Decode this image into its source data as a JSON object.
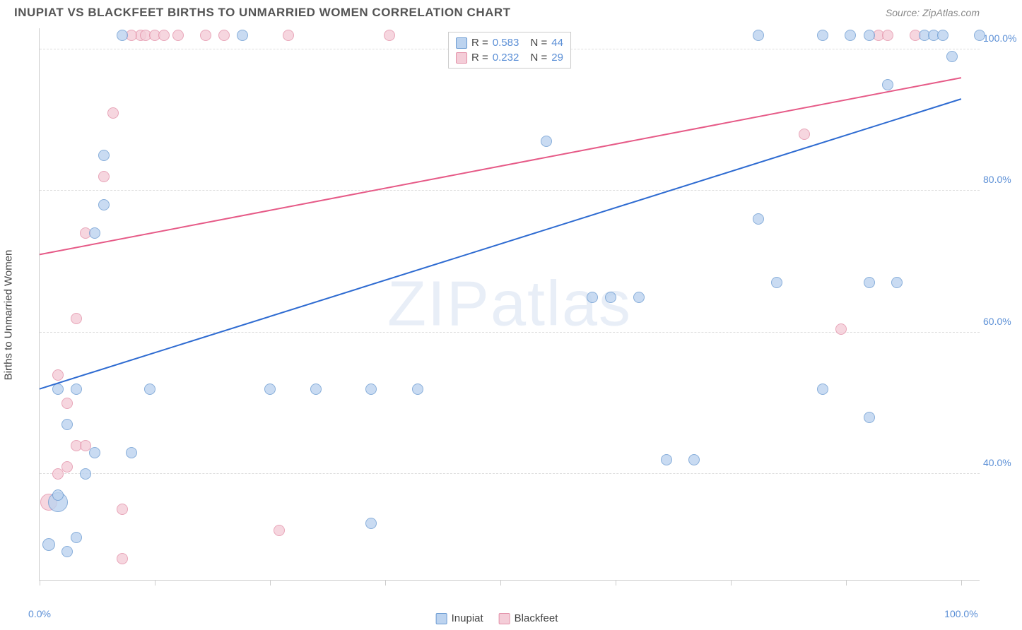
{
  "header": {
    "title": "INUPIAT VS BLACKFEET BIRTHS TO UNMARRIED WOMEN CORRELATION CHART",
    "source_prefix": "Source: ",
    "source": "ZipAtlas.com"
  },
  "yaxis": {
    "label": "Births to Unmarried Women",
    "min": 25,
    "max": 103,
    "ticks": [
      40,
      60,
      80,
      100
    ],
    "tick_labels": [
      "40.0%",
      "60.0%",
      "80.0%",
      "100.0%"
    ],
    "tick_color": "#5b8fd6"
  },
  "xaxis": {
    "min": 0,
    "max": 102,
    "ticks": [
      0,
      12.5,
      25,
      37.5,
      50,
      62.5,
      75,
      87.5,
      100
    ],
    "end_labels": {
      "left": "0.0%",
      "right": "100.0%"
    },
    "label_color": "#5b8fd6"
  },
  "grid_color": "#dddddd",
  "series": {
    "inupiat": {
      "label": "Inupiat",
      "color_fill": "#bcd3ef",
      "color_stroke": "#6b9bd2",
      "line_color": "#2e6bd1",
      "R": "0.583",
      "N": "44",
      "marker_radius": 8,
      "trend": {
        "y_at_x0": 52,
        "y_at_x100": 93
      },
      "points": [
        {
          "x": 1,
          "y": 30,
          "r": 9
        },
        {
          "x": 2,
          "y": 36,
          "r": 14
        },
        {
          "x": 3,
          "y": 29,
          "r": 8
        },
        {
          "x": 4,
          "y": 31,
          "r": 8
        },
        {
          "x": 2,
          "y": 37,
          "r": 8
        },
        {
          "x": 5,
          "y": 40,
          "r": 8
        },
        {
          "x": 6,
          "y": 43,
          "r": 8
        },
        {
          "x": 3,
          "y": 47,
          "r": 8
        },
        {
          "x": 4,
          "y": 52,
          "r": 8
        },
        {
          "x": 2,
          "y": 52,
          "r": 8
        },
        {
          "x": 10,
          "y": 43,
          "r": 8
        },
        {
          "x": 12,
          "y": 52,
          "r": 8
        },
        {
          "x": 6,
          "y": 74,
          "r": 8
        },
        {
          "x": 7,
          "y": 78,
          "r": 8
        },
        {
          "x": 7,
          "y": 85,
          "r": 8
        },
        {
          "x": 9,
          "y": 102,
          "r": 8
        },
        {
          "x": 22,
          "y": 102,
          "r": 8
        },
        {
          "x": 25,
          "y": 52,
          "r": 8
        },
        {
          "x": 30,
          "y": 52,
          "r": 8
        },
        {
          "x": 36,
          "y": 33,
          "r": 8
        },
        {
          "x": 36,
          "y": 52,
          "r": 8
        },
        {
          "x": 41,
          "y": 52,
          "r": 8
        },
        {
          "x": 55,
          "y": 87,
          "r": 8
        },
        {
          "x": 60,
          "y": 65,
          "r": 8
        },
        {
          "x": 62,
          "y": 65,
          "r": 8
        },
        {
          "x": 65,
          "y": 65,
          "r": 8
        },
        {
          "x": 68,
          "y": 42,
          "r": 8
        },
        {
          "x": 71,
          "y": 42,
          "r": 8
        },
        {
          "x": 78,
          "y": 76,
          "r": 8
        },
        {
          "x": 78,
          "y": 102,
          "r": 8
        },
        {
          "x": 80,
          "y": 67,
          "r": 8
        },
        {
          "x": 85,
          "y": 52,
          "r": 8
        },
        {
          "x": 85,
          "y": 102,
          "r": 8
        },
        {
          "x": 88,
          "y": 102,
          "r": 8
        },
        {
          "x": 90,
          "y": 48,
          "r": 8
        },
        {
          "x": 90,
          "y": 67,
          "r": 8
        },
        {
          "x": 90,
          "y": 102,
          "r": 8
        },
        {
          "x": 92,
          "y": 95,
          "r": 8
        },
        {
          "x": 93,
          "y": 67,
          "r": 8
        },
        {
          "x": 96,
          "y": 102,
          "r": 8
        },
        {
          "x": 97,
          "y": 102,
          "r": 8
        },
        {
          "x": 98,
          "y": 102,
          "r": 8
        },
        {
          "x": 99,
          "y": 99,
          "r": 8
        },
        {
          "x": 102,
          "y": 102,
          "r": 8
        }
      ]
    },
    "blackfeet": {
      "label": "Blackfeet",
      "color_fill": "#f4cdd8",
      "color_stroke": "#e390a8",
      "line_color": "#e65a87",
      "R": "0.232",
      "N": "29",
      "marker_radius": 8,
      "trend": {
        "y_at_x0": 71,
        "y_at_x100": 96
      },
      "points": [
        {
          "x": 1,
          "y": 36,
          "r": 12
        },
        {
          "x": 2,
          "y": 40,
          "r": 8
        },
        {
          "x": 3,
          "y": 41,
          "r": 8
        },
        {
          "x": 4,
          "y": 44,
          "r": 8
        },
        {
          "x": 5,
          "y": 44,
          "r": 8
        },
        {
          "x": 3,
          "y": 50,
          "r": 8
        },
        {
          "x": 2,
          "y": 54,
          "r": 8
        },
        {
          "x": 4,
          "y": 62,
          "r": 8
        },
        {
          "x": 5,
          "y": 74,
          "r": 8
        },
        {
          "x": 7,
          "y": 82,
          "r": 8
        },
        {
          "x": 8,
          "y": 91,
          "r": 8
        },
        {
          "x": 9,
          "y": 35,
          "r": 8
        },
        {
          "x": 9,
          "y": 28,
          "r": 8
        },
        {
          "x": 11,
          "y": 102,
          "r": 8
        },
        {
          "x": 10,
          "y": 102,
          "r": 8
        },
        {
          "x": 11.5,
          "y": 102,
          "r": 8
        },
        {
          "x": 12.5,
          "y": 102,
          "r": 8
        },
        {
          "x": 13.5,
          "y": 102,
          "r": 8
        },
        {
          "x": 15,
          "y": 102,
          "r": 8
        },
        {
          "x": 18,
          "y": 102,
          "r": 8
        },
        {
          "x": 20,
          "y": 102,
          "r": 8
        },
        {
          "x": 26,
          "y": 32,
          "r": 8
        },
        {
          "x": 27,
          "y": 102,
          "r": 8
        },
        {
          "x": 38,
          "y": 102,
          "r": 8
        },
        {
          "x": 83,
          "y": 88,
          "r": 8
        },
        {
          "x": 87,
          "y": 60.5,
          "r": 8
        },
        {
          "x": 91,
          "y": 102,
          "r": 8
        },
        {
          "x": 92,
          "y": 102,
          "r": 8
        },
        {
          "x": 95,
          "y": 102,
          "r": 8
        }
      ]
    }
  },
  "legend_top_labels": {
    "R": "R =",
    "N": "N ="
  },
  "watermark": "ZIPatlas"
}
